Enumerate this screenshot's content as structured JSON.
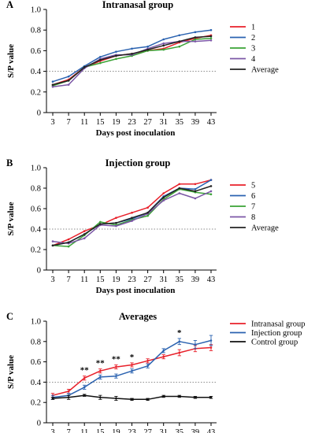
{
  "chart_data": [
    {
      "type": "line",
      "panel_label": "A",
      "title": "Intranasal group",
      "xlabel": "Days post inoculation",
      "ylabel": "S/P value",
      "x": [
        3,
        7,
        11,
        15,
        19,
        23,
        27,
        31,
        35,
        39,
        43
      ],
      "x_tick_labels": [
        "3",
        "7",
        "11",
        "15",
        "19",
        "23",
        "27",
        "31",
        "35",
        "39",
        "43"
      ],
      "ylim": [
        0,
        1.0
      ],
      "y_ticks": [
        "0",
        "0.2",
        "0.4",
        "0.6",
        "0.8",
        "1.0"
      ],
      "threshold": 0.4,
      "legend_position": "right",
      "series": [
        {
          "name": "1",
          "color": "#e8202a",
          "values": [
            0.27,
            0.32,
            0.44,
            0.5,
            0.55,
            0.57,
            0.6,
            0.62,
            0.68,
            0.72,
            0.75
          ]
        },
        {
          "name": "2",
          "color": "#2a62b0",
          "values": [
            0.3,
            0.35,
            0.45,
            0.54,
            0.59,
            0.62,
            0.64,
            0.71,
            0.75,
            0.78,
            0.8
          ]
        },
        {
          "name": "3",
          "color": "#3aa235",
          "values": [
            0.26,
            0.31,
            0.44,
            0.48,
            0.52,
            0.55,
            0.6,
            0.61,
            0.64,
            0.71,
            0.72
          ]
        },
        {
          "name": "4",
          "color": "#7b57a6",
          "values": [
            0.25,
            0.27,
            0.43,
            0.52,
            0.56,
            0.56,
            0.62,
            0.67,
            0.69,
            0.69,
            0.7
          ]
        },
        {
          "name": "Average",
          "color": "#222222",
          "values": [
            0.27,
            0.31,
            0.44,
            0.51,
            0.55,
            0.57,
            0.61,
            0.65,
            0.69,
            0.73,
            0.74
          ]
        }
      ]
    },
    {
      "type": "line",
      "panel_label": "B",
      "title": "Injection group",
      "xlabel": "Days post inoculation",
      "ylabel": "S/P value",
      "x": [
        3,
        7,
        11,
        15,
        19,
        23,
        27,
        31,
        35,
        39,
        43
      ],
      "x_tick_labels": [
        "3",
        "7",
        "11",
        "15",
        "19",
        "23",
        "27",
        "31",
        "35",
        "39",
        "43"
      ],
      "ylim": [
        0,
        1.0
      ],
      "y_ticks": [
        "0",
        "0.2",
        "0.4",
        "0.6",
        "0.8",
        "1.0"
      ],
      "threshold": 0.4,
      "legend_position": "right",
      "series": [
        {
          "name": "5",
          "color": "#e8202a",
          "values": [
            0.24,
            0.3,
            0.38,
            0.44,
            0.51,
            0.56,
            0.61,
            0.75,
            0.84,
            0.84,
            0.88
          ]
        },
        {
          "name": "6",
          "color": "#2a62b0",
          "values": [
            0.24,
            0.27,
            0.35,
            0.45,
            0.46,
            0.5,
            0.56,
            0.72,
            0.8,
            0.79,
            0.88
          ]
        },
        {
          "name": "7",
          "color": "#3aa235",
          "values": [
            0.24,
            0.23,
            0.34,
            0.47,
            0.44,
            0.49,
            0.53,
            0.69,
            0.79,
            0.76,
            0.74
          ]
        },
        {
          "name": "8",
          "color": "#7b57a6",
          "values": [
            0.28,
            0.26,
            0.31,
            0.44,
            0.43,
            0.48,
            0.55,
            0.68,
            0.75,
            0.7,
            0.77
          ]
        },
        {
          "name": "Average",
          "color": "#222222",
          "values": [
            0.24,
            0.27,
            0.35,
            0.45,
            0.46,
            0.51,
            0.56,
            0.71,
            0.8,
            0.77,
            0.82
          ]
        }
      ]
    },
    {
      "type": "line",
      "panel_label": "C",
      "title": "Averages",
      "xlabel": "Days post inoculation",
      "ylabel": "S/P value",
      "x": [
        3,
        7,
        11,
        15,
        19,
        23,
        27,
        31,
        35,
        39,
        43
      ],
      "x_tick_labels": [
        "3",
        "7",
        "11",
        "15",
        "19",
        "23",
        "27",
        "31",
        "35",
        "39",
        "43"
      ],
      "ylim": [
        0,
        1.0
      ],
      "y_ticks": [
        "0",
        "0.2",
        "0.4",
        "0.6",
        "0.8",
        "1.0"
      ],
      "threshold": 0.4,
      "legend_position": "right",
      "series": [
        {
          "name": "Intranasal group",
          "color": "#e8202a",
          "values": [
            0.27,
            0.31,
            0.44,
            0.51,
            0.55,
            0.57,
            0.61,
            0.65,
            0.69,
            0.73,
            0.74
          ],
          "error": [
            0.02,
            0.02,
            0.02,
            0.02,
            0.02,
            0.02,
            0.02,
            0.02,
            0.03,
            0.03,
            0.03
          ]
        },
        {
          "name": "Injection group",
          "color": "#2a62b0",
          "values": [
            0.25,
            0.27,
            0.35,
            0.45,
            0.46,
            0.51,
            0.56,
            0.71,
            0.8,
            0.77,
            0.81
          ],
          "error": [
            0.02,
            0.02,
            0.02,
            0.02,
            0.02,
            0.02,
            0.02,
            0.02,
            0.03,
            0.04,
            0.05
          ]
        },
        {
          "name": "Control group",
          "color": "#111111",
          "values": [
            0.24,
            0.25,
            0.27,
            0.25,
            0.24,
            0.23,
            0.23,
            0.26,
            0.26,
            0.25,
            0.25
          ],
          "error": [
            0.01,
            0.02,
            0.01,
            0.02,
            0.02,
            0.01,
            0.01,
            0.01,
            0.01,
            0.01,
            0.01
          ]
        }
      ],
      "annotations": [
        {
          "x": 11,
          "text": "**"
        },
        {
          "x": 15,
          "text": "**"
        },
        {
          "x": 19,
          "text": "**"
        },
        {
          "x": 23,
          "text": "*"
        },
        {
          "x": 35,
          "text": "*"
        }
      ]
    }
  ]
}
